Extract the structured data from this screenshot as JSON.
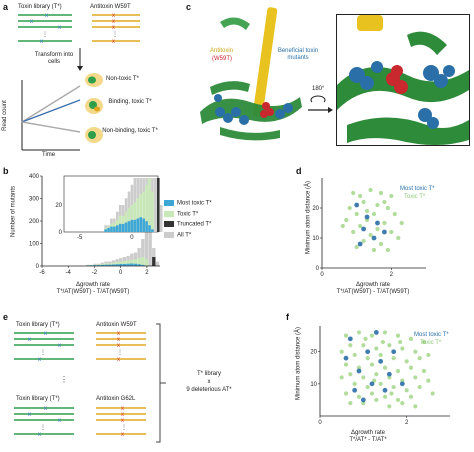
{
  "panels": {
    "a": {
      "letter": "a",
      "toxin_library": "Toxin library (T*)",
      "antitoxin": "Antitoxin W59T",
      "transform": "Transform into cells",
      "y_label": "Read count",
      "x_label": "Time",
      "outcomes": [
        "Non-toxic T*",
        "Binding, toxic T*",
        "Non-binding, toxic T*"
      ]
    },
    "c": {
      "letter": "c",
      "antitoxin_label": "Antitoxin",
      "antitoxin_mut": "(W59T)",
      "beneficial": "Beneficial toxin mutants",
      "rotation": "180°"
    },
    "b": {
      "letter": "b",
      "y_label": "Number of mutants",
      "x_label_line1": "Δgrowth rate",
      "x_label_line2": "T*/AT(W59T) - T/AT(W59T)",
      "legend": [
        "Most toxic T*",
        "Toxic T*",
        "Truncated T*",
        "All T*"
      ],
      "colors": [
        "#3fa7d6",
        "#c9e8b8",
        "#333333",
        "#cccccc"
      ]
    },
    "d": {
      "letter": "d",
      "y_label": "Minimum atom distance (Å)",
      "x_label_line1": "Δgrowth rate",
      "x_label_line2": "T*/AT(W59T) - T/AT(W59T)",
      "legend": [
        "Most toxic T*",
        "Toxic T*"
      ]
    },
    "e": {
      "letter": "e",
      "toxin_library_1": "Toxin library (T*)",
      "antitoxin_1": "Antitoxin W59T",
      "toxin_library_2": "Toxin library (T*)",
      "antitoxin_2": "Antitoxin G62L",
      "summary_1": "T* library",
      "summary_2": "x",
      "summary_3": "9 deleterious AT*"
    },
    "f": {
      "letter": "f",
      "y_label": "Minimum atom distance (Å)",
      "x_label_line1": "Δgrowth rate",
      "x_label_line2": "T*/AT* - T/AT*",
      "legend": [
        "Most toxic T*",
        "Toxic T*"
      ]
    }
  },
  "chart_data": [
    {
      "type": "bar",
      "panel": "b",
      "xlim": [
        -6,
        3
      ],
      "ylim": [
        0,
        400
      ],
      "x_ticks": [
        -6,
        -4,
        -2,
        0,
        2
      ],
      "y_ticks": [
        0,
        100,
        200,
        300,
        400
      ],
      "inset_x_ticks": [
        -5,
        0
      ],
      "inset_y_ticks": [
        0,
        20
      ],
      "series": [
        {
          "name": "All T*",
          "values": [
            0,
            0,
            0,
            0,
            0,
            0,
            0,
            0,
            0,
            0,
            0,
            0,
            5,
            5,
            10,
            10,
            15,
            20,
            20,
            25,
            30,
            35,
            40,
            45,
            55,
            60,
            80,
            120,
            380,
            200,
            80,
            20
          ]
        },
        {
          "name": "Toxic T*",
          "values": [
            0,
            0,
            0,
            0,
            0,
            0,
            0,
            0,
            0,
            0,
            0,
            0,
            3,
            4,
            6,
            7,
            9,
            12,
            12,
            15,
            18,
            20,
            22,
            25,
            28,
            30,
            35,
            40,
            30,
            0,
            0,
            0
          ]
        },
        {
          "name": "Most toxic T*",
          "values": [
            0,
            0,
            0,
            0,
            0,
            0,
            0,
            0,
            0,
            0,
            0,
            0,
            2,
            3,
            4,
            4,
            5,
            6,
            6,
            7,
            8,
            9,
            9,
            10,
            11,
            10,
            8,
            5,
            2,
            0,
            0,
            0
          ]
        },
        {
          "name": "Truncated T*",
          "values": [
            0,
            0,
            0,
            0,
            0,
            0,
            0,
            0,
            0,
            0,
            0,
            0,
            0,
            0,
            0,
            0,
            0,
            0,
            0,
            0,
            0,
            0,
            0,
            0,
            0,
            0,
            0,
            0,
            0,
            0,
            40,
            0
          ]
        }
      ],
      "x_start": -6,
      "bin_width": 0.28
    },
    {
      "type": "scatter",
      "panel": "d",
      "xlim": [
        0,
        3
      ],
      "ylim": [
        0,
        30
      ],
      "x_ticks": [
        0,
        2
      ],
      "y_ticks": [
        0,
        10,
        20
      ],
      "series": [
        {
          "name": "Toxic T*",
          "points": [
            [
              0.9,
              25
            ],
            [
              1.1,
              24
            ],
            [
              1.4,
              26
            ],
            [
              1.7,
              25
            ],
            [
              2.0,
              24
            ],
            [
              1.2,
              22
            ],
            [
              1.6,
              21
            ],
            [
              0.8,
              20
            ],
            [
              1.9,
              20
            ],
            [
              1.0,
              18
            ],
            [
              1.5,
              18
            ],
            [
              2.1,
              18
            ],
            [
              0.7,
              16
            ],
            [
              1.3,
              16
            ],
            [
              1.8,
              15
            ],
            [
              1.1,
              14
            ],
            [
              1.6,
              13
            ],
            [
              2.0,
              12
            ],
            [
              0.9,
              12
            ],
            [
              1.4,
              11
            ],
            [
              1.2,
              9
            ],
            [
              1.7,
              8
            ],
            [
              1.0,
              7
            ],
            [
              1.5,
              6
            ],
            [
              1.9,
              6
            ],
            [
              2.2,
              10
            ],
            [
              1.3,
              19
            ],
            [
              1.8,
              22
            ],
            [
              0.6,
              14
            ],
            [
              2.3,
              15
            ]
          ]
        },
        {
          "name": "Most toxic T*",
          "points": [
            [
              1.0,
              21
            ],
            [
              1.3,
              17
            ],
            [
              1.6,
              15
            ],
            [
              1.2,
              13
            ],
            [
              1.8,
              12
            ],
            [
              1.5,
              10
            ],
            [
              1.1,
              8
            ]
          ]
        }
      ]
    },
    {
      "type": "scatter",
      "panel": "f",
      "xlim": [
        0,
        3
      ],
      "ylim": [
        0,
        28
      ],
      "x_ticks": [
        0,
        2
      ],
      "y_ticks": [
        10,
        20
      ],
      "series": [
        {
          "name": "Toxic T*",
          "points": [
            [
              0.6,
              25
            ],
            [
              0.9,
              26
            ],
            [
              1.2,
              25
            ],
            [
              1.5,
              26
            ],
            [
              1.8,
              25
            ],
            [
              2.1,
              24
            ],
            [
              2.4,
              23
            ],
            [
              0.7,
              22
            ],
            [
              1.0,
              22
            ],
            [
              1.3,
              21
            ],
            [
              1.6,
              22
            ],
            [
              1.9,
              21
            ],
            [
              2.2,
              20
            ],
            [
              0.8,
              19
            ],
            [
              1.1,
              18
            ],
            [
              1.4,
              19
            ],
            [
              1.7,
              18
            ],
            [
              2.0,
              17
            ],
            [
              2.3,
              18
            ],
            [
              0.6,
              16
            ],
            [
              0.9,
              15
            ],
            [
              1.2,
              16
            ],
            [
              1.5,
              15
            ],
            [
              1.8,
              14
            ],
            [
              2.1,
              15
            ],
            [
              2.4,
              14
            ],
            [
              0.7,
              13
            ],
            [
              1.0,
              12
            ],
            [
              1.3,
              13
            ],
            [
              1.6,
              12
            ],
            [
              1.9,
              11
            ],
            [
              2.2,
              12
            ],
            [
              0.8,
              10
            ],
            [
              1.1,
              9
            ],
            [
              1.4,
              10
            ],
            [
              1.7,
              9
            ],
            [
              2.0,
              8
            ],
            [
              2.3,
              9
            ],
            [
              0.6,
              7
            ],
            [
              0.9,
              6
            ],
            [
              1.2,
              7
            ],
            [
              1.5,
              6
            ],
            [
              1.8,
              5
            ],
            [
              2.1,
              6
            ],
            [
              0.7,
              4
            ],
            [
              1.0,
              4
            ],
            [
              1.3,
              5
            ],
            [
              1.6,
              3
            ],
            [
              1.9,
              4
            ],
            [
              2.2,
              3
            ],
            [
              2.5,
              11
            ],
            [
              2.5,
              19
            ],
            [
              2.6,
              7
            ],
            [
              0.5,
              12
            ],
            [
              0.5,
              20
            ],
            [
              1.05,
              24
            ],
            [
              1.45,
              23
            ],
            [
              1.85,
              23
            ],
            [
              1.25,
              11
            ],
            [
              1.65,
              7
            ]
          ]
        },
        {
          "name": "Most toxic T*",
          "points": [
            [
              0.7,
              24
            ],
            [
              1.1,
              20
            ],
            [
              1.4,
              17
            ],
            [
              0.9,
              14
            ],
            [
              1.6,
              13
            ],
            [
              1.2,
              10
            ],
            [
              0.8,
              8
            ],
            [
              1.5,
              8
            ],
            [
              1.0,
              5
            ],
            [
              1.3,
              26
            ],
            [
              1.7,
              20
            ],
            [
              0.6,
              18
            ],
            [
              1.9,
              10
            ]
          ]
        }
      ]
    }
  ]
}
